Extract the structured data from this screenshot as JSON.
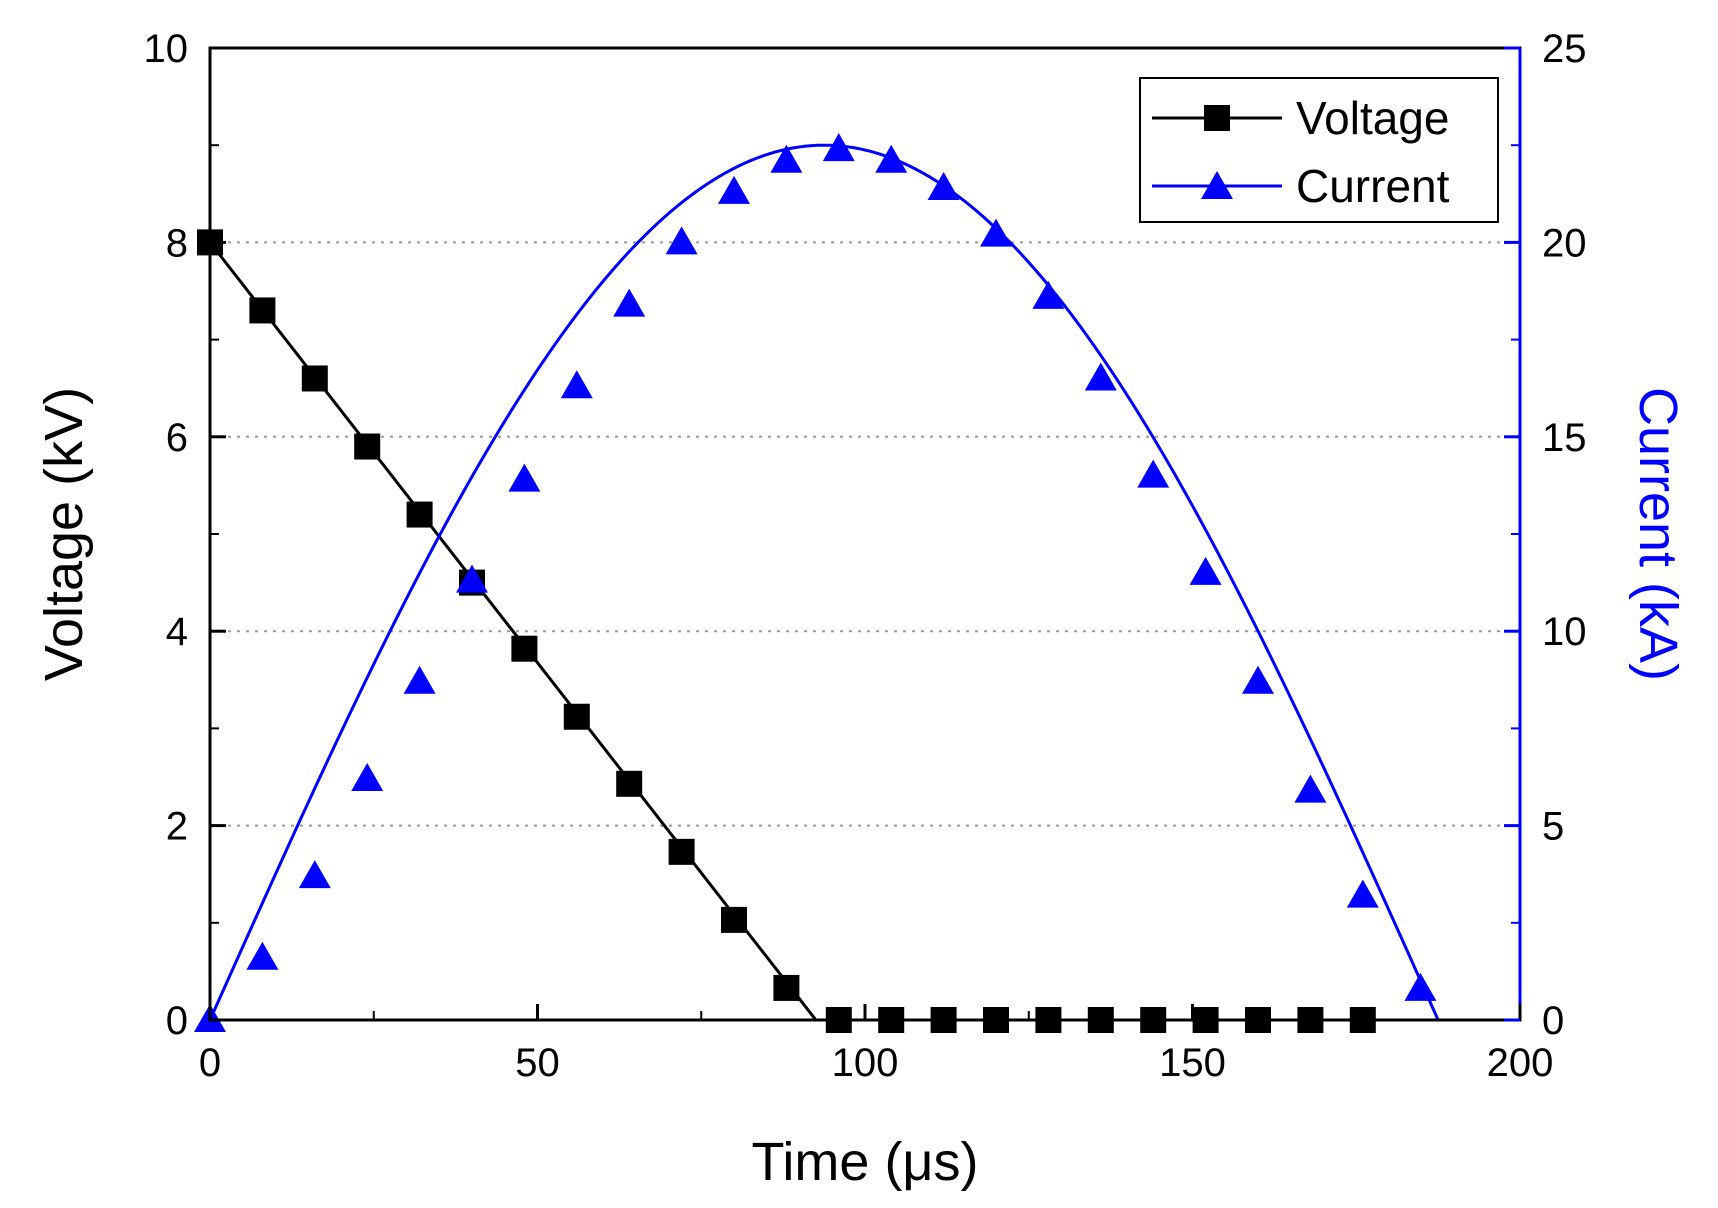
{
  "chart_data": {
    "type": "line",
    "title": "",
    "xlabel": "Time (μs)",
    "ylabel_left": "Voltage (kV)",
    "ylabel_right": "Current (kA)",
    "xlim": [
      0,
      200
    ],
    "ylim_left": [
      0,
      10
    ],
    "ylim_right": [
      0,
      25
    ],
    "x_ticks": [
      0,
      50,
      100,
      150,
      200
    ],
    "y_left_ticks": [
      0,
      2,
      4,
      6,
      8,
      10
    ],
    "y_right_ticks": [
      0,
      5,
      10,
      15,
      20,
      25
    ],
    "grid": "horizontal dotted",
    "legend_position": "top-right",
    "series": [
      {
        "name": "Voltage",
        "axis": "left",
        "color": "#000000",
        "marker": "square",
        "x": [
          0,
          8,
          16,
          24,
          32,
          40,
          48,
          56,
          64,
          72,
          80,
          88,
          96,
          104,
          112,
          120,
          128,
          136,
          144,
          152,
          160,
          168,
          176
        ],
        "values": [
          8.0,
          7.3,
          6.6,
          5.9,
          5.2,
          4.5,
          3.82,
          3.12,
          2.43,
          1.73,
          1.03,
          0.33,
          0,
          0,
          0,
          0,
          0,
          0,
          0,
          0,
          0,
          0,
          0
        ],
        "line_x": [
          0,
          92.5,
          96,
          200
        ],
        "line_values": [
          8.0,
          0,
          0,
          0
        ]
      },
      {
        "name": "Current",
        "axis": "right",
        "color": "#0000ff",
        "marker": "triangle",
        "x": [
          0,
          8,
          16,
          24,
          32,
          40,
          48,
          56,
          64,
          72,
          80,
          88,
          96,
          104,
          112,
          120,
          128,
          136,
          144,
          152,
          160,
          168,
          176,
          184.8
        ],
        "values": [
          0,
          1.6,
          3.7,
          6.2,
          8.7,
          11.3,
          13.9,
          16.3,
          18.4,
          20.0,
          21.3,
          22.1,
          22.4,
          22.1,
          21.4,
          20.2,
          18.6,
          16.5,
          14.0,
          11.5,
          8.7,
          5.9,
          3.2,
          0.8
        ],
        "curve_peak_x": 97.5,
        "curve_peak": 22.5,
        "curve_end_x": 187.5
      }
    ]
  },
  "colors": {
    "left_axis": "#000000",
    "right_axis": "#0000ff",
    "grid": "#9a9a9a"
  }
}
